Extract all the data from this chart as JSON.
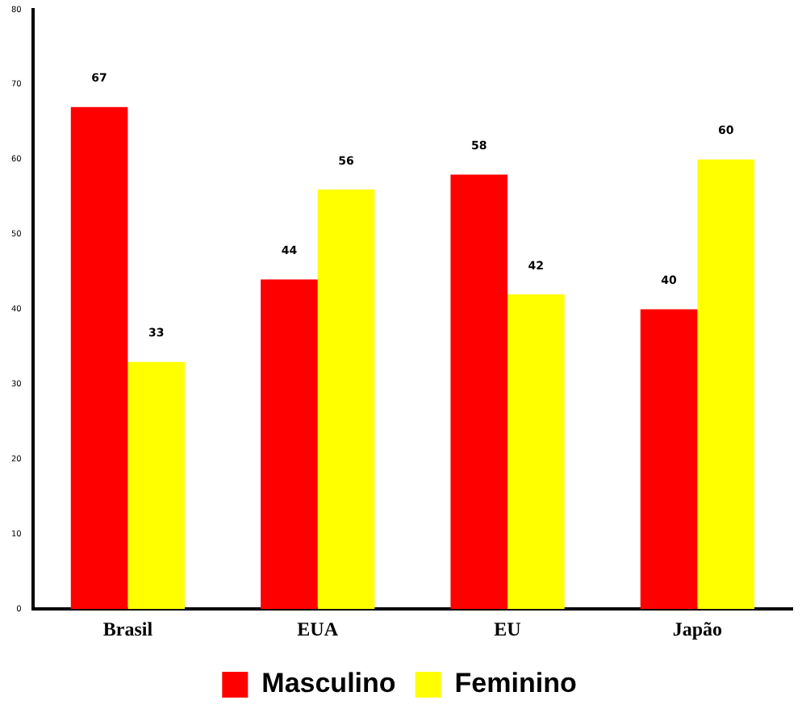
{
  "chart_data": {
    "type": "bar",
    "categories": [
      "Brasil",
      "EUA",
      "EU",
      "Japão"
    ],
    "series": [
      {
        "name": "Masculino",
        "color": "#ff0000",
        "values": [
          67,
          44,
          58,
          40
        ]
      },
      {
        "name": "Feminino",
        "color": "#ffff00",
        "values": [
          33,
          56,
          42,
          60
        ]
      }
    ],
    "ylim": [
      0,
      80
    ],
    "yticks": [
      0,
      10,
      20,
      30,
      40,
      50,
      60,
      70,
      80
    ],
    "grid": false,
    "legend": "bottom",
    "data_labels": true
  }
}
